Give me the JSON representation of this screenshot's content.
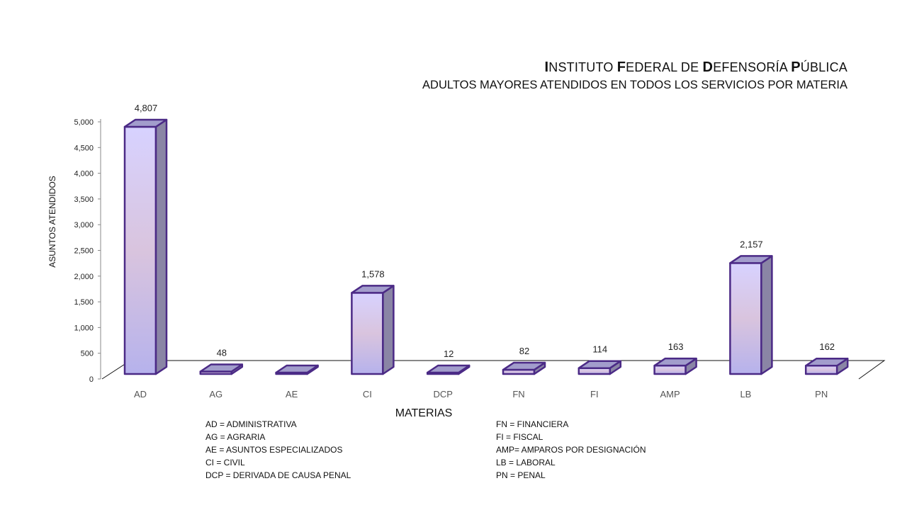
{
  "title": "Instituto Federal de Defensoría Pública",
  "subtitle": "ADULTOS MAYORES ATENDIDOS EN TODOS LOS SERVICIOS POR MATERIA",
  "chart_data": {
    "type": "bar",
    "title": "INSTITUTO FEDERAL DE DEFENSORÍA PÚBLICA",
    "subtitle": "ADULTOS MAYORES ATENDIDOS EN TODOS LOS SERVICIOS POR MATERIA",
    "xlabel": "MATERIAS",
    "ylabel": "ASUNTOS ATENDIDOS",
    "categories": [
      "AD",
      "AG",
      "AE",
      "CI",
      "DCP",
      "FN",
      "FI",
      "AMP",
      "LB",
      "PN"
    ],
    "values": [
      4807,
      48,
      0,
      1578,
      12,
      82,
      114,
      163,
      2157,
      162
    ],
    "data_labels": [
      "4,807",
      "48",
      "",
      "1,578",
      "12",
      "82",
      "114",
      "163",
      "2,157",
      "162"
    ],
    "ylim": [
      0,
      5000
    ],
    "yticks": [
      0,
      500,
      1000,
      1500,
      2000,
      2500,
      3000,
      3500,
      4000,
      4500,
      5000
    ],
    "ytick_labels": [
      "0",
      "500",
      "1,000",
      "1,500",
      "2,000",
      "2,500",
      "3,000",
      "3,500",
      "4,000",
      "4,500",
      "5,000"
    ],
    "grid": false,
    "style": "3d-column",
    "colors": {
      "bar_top": "#d7d2ff",
      "bar_mid": "#d9c4de",
      "bar_bottom": "#b6b2ec",
      "bar_side": "#8a85a5",
      "bar_cap": "#a29dcc",
      "outline": "#4b2a86",
      "floor_line": "#111111"
    }
  },
  "legend_left": [
    "AD = ADMINISTRATIVA",
    "AG = AGRARIA",
    "AE = ASUNTOS  ESPECIALIZADOS",
    "CI = CIVIL",
    "DCP =  DERIVADA DE CAUSA  PENAL"
  ],
  "legend_right": [
    "FN = FINANCIERA",
    "FI = FISCAL",
    "AMP= AMPAROS  POR DESIGNACIÓN",
    "LB = LABORAL",
    "PN = PENAL"
  ]
}
